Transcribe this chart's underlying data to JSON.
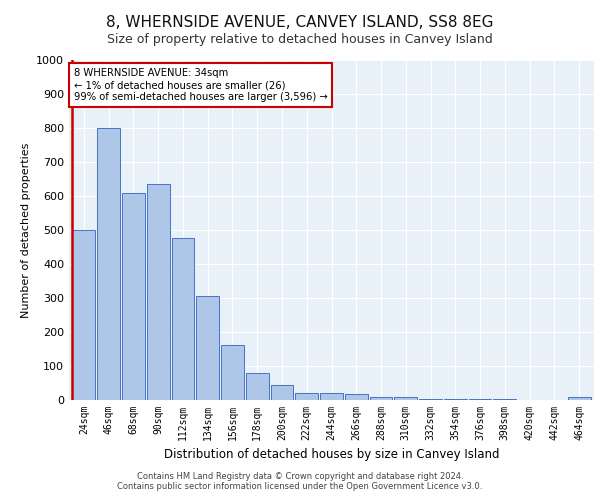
{
  "title": "8, WHERNSIDE AVENUE, CANVEY ISLAND, SS8 8EG",
  "subtitle": "Size of property relative to detached houses in Canvey Island",
  "xlabel": "Distribution of detached houses by size in Canvey Island",
  "ylabel": "Number of detached properties",
  "categories": [
    "24sqm",
    "46sqm",
    "68sqm",
    "90sqm",
    "112sqm",
    "134sqm",
    "156sqm",
    "178sqm",
    "200sqm",
    "222sqm",
    "244sqm",
    "266sqm",
    "288sqm",
    "310sqm",
    "332sqm",
    "354sqm",
    "376sqm",
    "398sqm",
    "420sqm",
    "442sqm",
    "464sqm"
  ],
  "values": [
    500,
    800,
    610,
    635,
    475,
    305,
    163,
    80,
    45,
    22,
    22,
    18,
    10,
    8,
    4,
    3,
    2,
    2,
    1,
    1,
    8
  ],
  "bar_color": "#aec6e8",
  "bar_edge_color": "#4472c4",
  "highlight_color": "#cc0000",
  "annotation_text": "8 WHERNSIDE AVENUE: 34sqm\n← 1% of detached houses are smaller (26)\n99% of semi-detached houses are larger (3,596) →",
  "annotation_box_color": "#cc0000",
  "ylim": [
    0,
    1000
  ],
  "yticks": [
    0,
    100,
    200,
    300,
    400,
    500,
    600,
    700,
    800,
    900,
    1000
  ],
  "footer_line1": "Contains HM Land Registry data © Crown copyright and database right 2024.",
  "footer_line2": "Contains public sector information licensed under the Open Government Licence v3.0.",
  "background_color": "#e8f0f8",
  "fig_background": "#ffffff",
  "grid_color": "#ffffff",
  "title_fontsize": 11,
  "subtitle_fontsize": 9
}
